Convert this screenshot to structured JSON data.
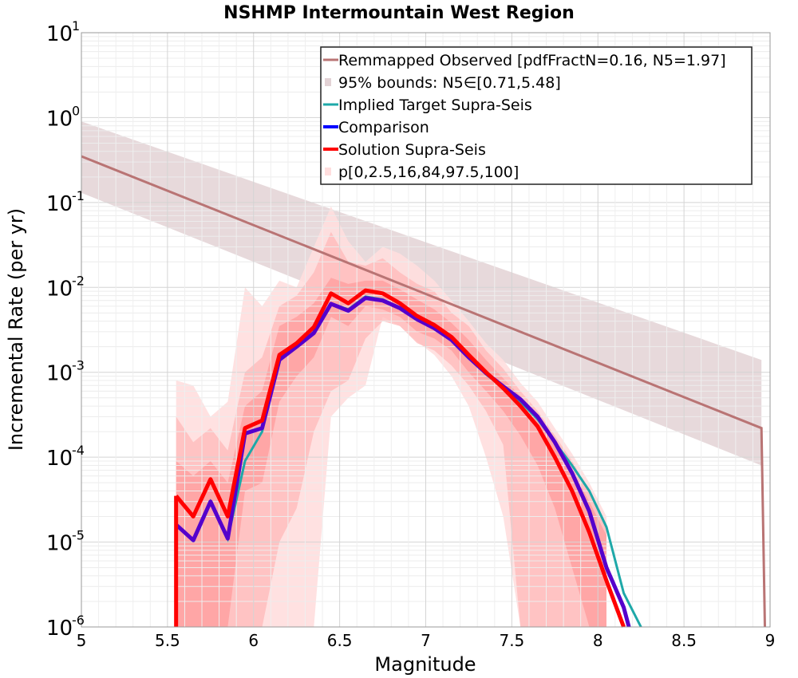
{
  "chart_data": {
    "type": "line",
    "title": "NSHMP Intermountain West Region",
    "xlabel": "Magnitude",
    "ylabel": "Incremental Rate (per yr)",
    "xlim": [
      5,
      9
    ],
    "ylim": [
      1e-06,
      10
    ],
    "yscale": "log",
    "grid": true,
    "legend_position": "top-right",
    "x_ticks": [
      "5",
      "5.5",
      "6",
      "6.5",
      "7",
      "7.5",
      "8",
      "8.5",
      "9"
    ],
    "y_ticks": [
      {
        "base": "10",
        "exp": "-6"
      },
      {
        "base": "10",
        "exp": "-5"
      },
      {
        "base": "10",
        "exp": "-4"
      },
      {
        "base": "10",
        "exp": "-3"
      },
      {
        "base": "10",
        "exp": "-2"
      },
      {
        "base": "10",
        "exp": "-1"
      },
      {
        "base": "10",
        "exp": "0"
      },
      {
        "base": "10",
        "exp": "1"
      }
    ],
    "legend": [
      {
        "label": "Remmapped Observed [pdfFractN=0.16, N5=1.97]",
        "style": "line"
      },
      {
        "label": "95% bounds: N5∈[0.71,5.48]",
        "style": "band"
      },
      {
        "label": "Implied Target Supra-Seis",
        "style": "line"
      },
      {
        "label": "Comparison",
        "style": "line"
      },
      {
        "label": "Solution Supra-Seis",
        "style": "line"
      },
      {
        "label": "p[0,2.5,16,84,97.5,100]",
        "style": "band"
      }
    ],
    "colors": {
      "observed": "#b97474",
      "observed_band": "#e3d2d5",
      "implied": "#1ea8a8",
      "comparison": "#0000ff",
      "comparison_drawn": "#5500cc",
      "solution": "#ff0000",
      "outer_band": "#ffdede",
      "mid_band": "#ffb8b8",
      "inner_band": "#ff9a9a"
    },
    "observed": {
      "x": [
        5.0,
        8.95,
        8.97
      ],
      "y": [
        0.35,
        0.00022,
        1e-06
      ]
    },
    "observed_bounds": {
      "x": [
        5.0,
        8.95
      ],
      "upper": [
        0.9,
        0.0014
      ],
      "lower": [
        0.13,
        8e-05
      ]
    },
    "implied": {
      "x": [
        5.55,
        5.65,
        5.75,
        5.85,
        5.95,
        6.05,
        6.15,
        6.25,
        6.35,
        6.45,
        6.55,
        6.65,
        6.75,
        6.85,
        6.95,
        7.05,
        7.15,
        7.25,
        7.35,
        7.45,
        7.55,
        7.65,
        7.75,
        7.85,
        7.95,
        8.05,
        8.15,
        8.25
      ],
      "y": [
        1.6e-05,
        1.05e-05,
        3e-05,
        1.1e-05,
        9e-05,
        0.0002,
        0.0015,
        0.002,
        0.003,
        0.0065,
        0.0055,
        0.0078,
        0.0072,
        0.0058,
        0.0043,
        0.0034,
        0.0024,
        0.0015,
        0.00095,
        0.00065,
        0.00045,
        0.00028,
        0.00015,
        8e-05,
        4e-05,
        1.5e-05,
        2.5e-06,
        1e-06
      ]
    },
    "comparison": {
      "x": [
        5.55,
        5.65,
        5.75,
        5.85,
        5.95,
        6.05,
        6.15,
        6.25,
        6.35,
        6.45,
        6.55,
        6.65,
        6.75,
        6.85,
        6.95,
        7.05,
        7.15,
        7.25,
        7.35,
        7.45,
        7.55,
        7.65,
        7.75,
        7.85,
        7.95,
        8.05,
        8.15,
        8.18
      ],
      "y": [
        1.6e-05,
        1.05e-05,
        3e-05,
        1.1e-05,
        0.00019,
        0.00022,
        0.0014,
        0.002,
        0.0029,
        0.0064,
        0.0053,
        0.0075,
        0.007,
        0.0057,
        0.0042,
        0.0033,
        0.0024,
        0.0015,
        0.00098,
        0.00068,
        0.00048,
        0.0003,
        0.00015,
        6.5e-05,
        2.3e-05,
        5e-06,
        1.7e-06,
        1e-06
      ]
    },
    "solution": {
      "x": [
        5.55,
        5.65,
        5.75,
        5.85,
        5.95,
        6.05,
        6.15,
        6.25,
        6.35,
        6.45,
        6.55,
        6.65,
        6.75,
        6.85,
        6.95,
        7.05,
        7.15,
        7.25,
        7.35,
        7.45,
        7.55,
        7.65,
        7.75,
        7.85,
        7.95,
        8.05,
        8.15
      ],
      "y": [
        3.5e-05,
        2e-05,
        5.5e-05,
        2e-05,
        0.00022,
        0.00027,
        0.0016,
        0.0022,
        0.0034,
        0.0085,
        0.0065,
        0.0092,
        0.0085,
        0.0065,
        0.0046,
        0.0036,
        0.0026,
        0.0016,
        0.001,
        0.00065,
        0.0004,
        0.00023,
        0.0001,
        4e-05,
        1.3e-05,
        3.5e-06,
        1e-06
      ]
    },
    "bands": {
      "x": [
        5.55,
        5.65,
        5.75,
        5.85,
        5.95,
        6.05,
        6.15,
        6.25,
        6.35,
        6.45,
        6.55,
        6.65,
        6.75,
        6.85,
        6.95,
        7.05,
        7.15,
        7.25,
        7.35,
        7.45,
        7.55,
        7.65,
        7.75,
        7.85,
        7.95,
        8.05
      ],
      "p100": [
        0.0008,
        0.0007,
        0.0003,
        0.00045,
        0.01,
        0.006,
        0.012,
        0.01,
        0.03,
        0.09,
        0.035,
        0.02,
        0.03,
        0.025,
        0.018,
        0.012,
        0.007,
        0.004,
        0.0022,
        0.0014,
        0.00075,
        0.00045,
        0.00022,
        0.00011,
        5e-05,
        2e-05
      ],
      "p97_5": [
        0.0003,
        0.00015,
        0.00022,
        0.00012,
        0.001,
        0.0015,
        0.006,
        0.008,
        0.015,
        0.045,
        0.02,
        0.018,
        0.022,
        0.015,
        0.011,
        0.009,
        0.005,
        0.0035,
        0.0018,
        0.0011,
        0.0006,
        0.00035,
        0.00018,
        9e-05,
        4e-05,
        1.5e-05
      ],
      "p84": [
        9e-05,
        6e-05,
        9e-05,
        5e-05,
        0.0004,
        0.0006,
        0.0035,
        0.0045,
        0.0065,
        0.013,
        0.011,
        0.012,
        0.012,
        0.0095,
        0.0072,
        0.0055,
        0.0038,
        0.0024,
        0.0014,
        0.00085,
        0.00052,
        0.0003,
        0.00015,
        7e-05,
        3e-05,
        1.2e-05
      ],
      "p16": [
        1e-06,
        1e-06,
        1e-06,
        1e-06,
        4e-05,
        5e-05,
        0.00045,
        0.0009,
        0.0015,
        0.0045,
        0.0035,
        0.006,
        0.0055,
        0.0045,
        0.003,
        0.0025,
        0.0018,
        0.001,
        0.0006,
        0.00035,
        0.00018,
        8e-05,
        2.5e-05,
        5e-06,
        1e-06,
        1e-06
      ],
      "p2_5": [
        1e-06,
        1e-06,
        1e-06,
        1e-06,
        1e-06,
        1e-06,
        1e-05,
        2.5e-05,
        0.0002,
        0.0006,
        0.0008,
        0.0025,
        0.004,
        0.0035,
        0.0022,
        0.0018,
        0.0012,
        0.0007,
        0.00035,
        0.00014,
        1e-06,
        1e-06,
        1e-06,
        1e-06,
        1e-06,
        1e-06
      ],
      "p0": [
        1e-06,
        1e-06,
        1e-06,
        1e-06,
        1e-06,
        1e-06,
        1e-06,
        1e-06,
        1e-06,
        0.0003,
        0.0005,
        0.0007,
        0.0045,
        0.0035,
        0.0023,
        0.0016,
        0.0009,
        0.0004,
        0.0001,
        2e-05,
        1e-06,
        1e-06,
        1e-06,
        1e-06,
        1e-06,
        1e-06
      ]
    }
  }
}
